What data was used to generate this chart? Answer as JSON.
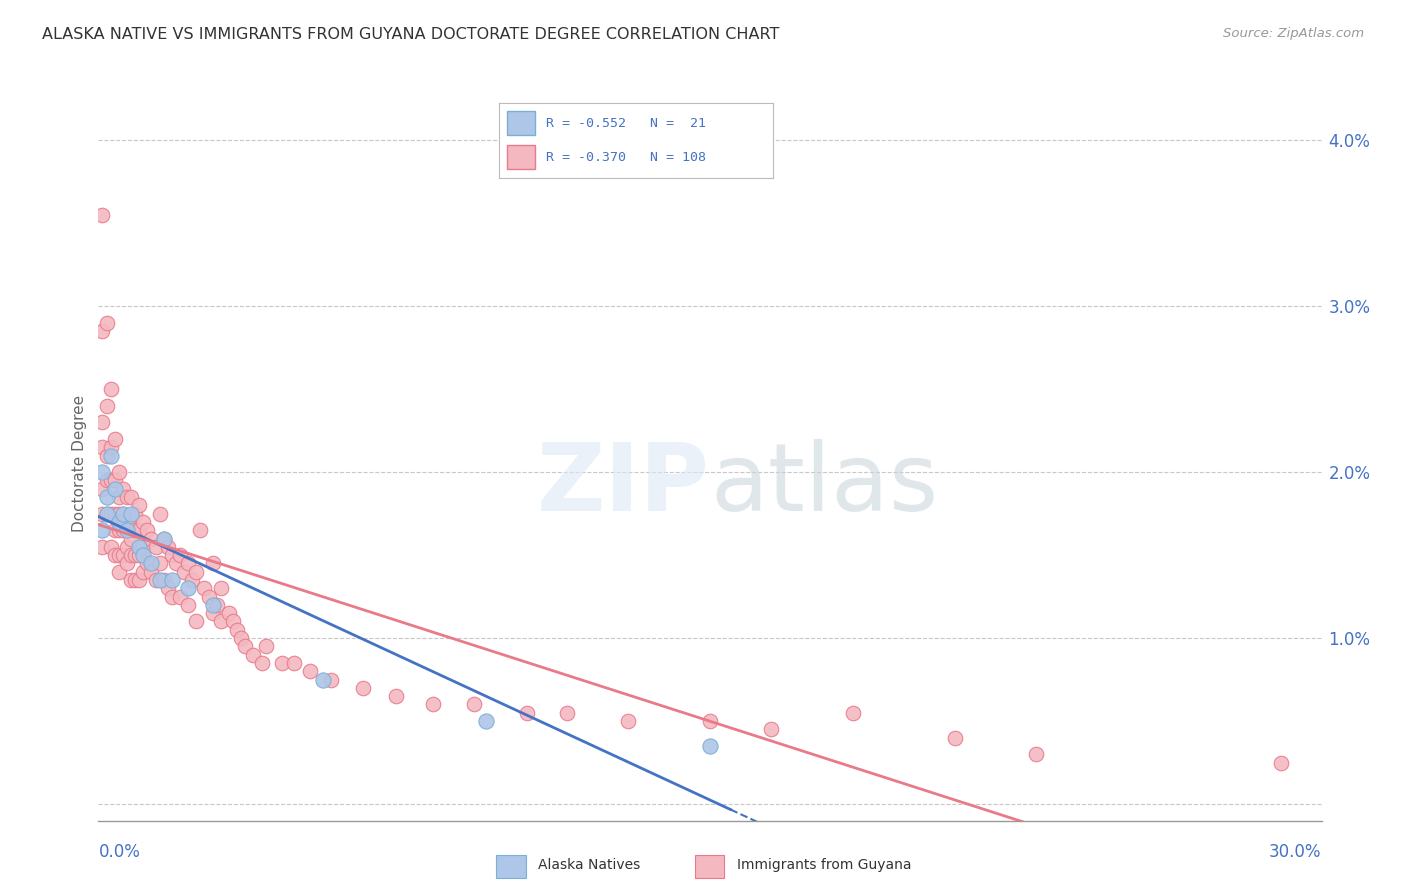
{
  "title": "ALASKA NATIVE VS IMMIGRANTS FROM GUYANA DOCTORATE DEGREE CORRELATION CHART",
  "source": "Source: ZipAtlas.com",
  "ylabel": "Doctorate Degree",
  "xlim": [
    0.0,
    0.3
  ],
  "ylim": [
    -0.001,
    0.042
  ],
  "background_color": "#ffffff",
  "grid_color": "#c8c8c8",
  "title_color": "#333333",
  "source_color": "#999999",
  "alaska_color": "#aec6e8",
  "alaska_edge_color": "#7bafd4",
  "guyana_color": "#f4b8c1",
  "guyana_edge_color": "#e87a8a",
  "alaska_line_color": "#4472c4",
  "guyana_line_color": "#e87a8a",
  "legend_text_color": "#4472c4",
  "r_alaska": "-0.552",
  "n_alaska": "21",
  "r_guyana": "-0.370",
  "n_guyana": "108",
  "alaska_x": [
    0.001,
    0.001,
    0.002,
    0.002,
    0.003,
    0.004,
    0.005,
    0.006,
    0.007,
    0.008,
    0.01,
    0.011,
    0.013,
    0.015,
    0.016,
    0.018,
    0.022,
    0.028,
    0.055,
    0.095,
    0.15
  ],
  "alaska_y": [
    0.02,
    0.0165,
    0.0185,
    0.0175,
    0.021,
    0.019,
    0.017,
    0.0175,
    0.0165,
    0.0175,
    0.0155,
    0.015,
    0.0145,
    0.0135,
    0.016,
    0.0135,
    0.013,
    0.012,
    0.0075,
    0.005,
    0.0035
  ],
  "guyana_x": [
    0.001,
    0.001,
    0.001,
    0.001,
    0.001,
    0.001,
    0.001,
    0.002,
    0.002,
    0.002,
    0.002,
    0.002,
    0.003,
    0.003,
    0.003,
    0.003,
    0.003,
    0.004,
    0.004,
    0.004,
    0.004,
    0.004,
    0.005,
    0.005,
    0.005,
    0.005,
    0.005,
    0.005,
    0.006,
    0.006,
    0.006,
    0.006,
    0.007,
    0.007,
    0.007,
    0.007,
    0.008,
    0.008,
    0.008,
    0.008,
    0.008,
    0.009,
    0.009,
    0.009,
    0.009,
    0.01,
    0.01,
    0.01,
    0.01,
    0.011,
    0.011,
    0.011,
    0.012,
    0.012,
    0.013,
    0.013,
    0.014,
    0.014,
    0.015,
    0.015,
    0.016,
    0.016,
    0.017,
    0.017,
    0.018,
    0.018,
    0.019,
    0.02,
    0.02,
    0.021,
    0.022,
    0.022,
    0.023,
    0.024,
    0.024,
    0.025,
    0.026,
    0.027,
    0.028,
    0.028,
    0.029,
    0.03,
    0.03,
    0.032,
    0.033,
    0.034,
    0.035,
    0.036,
    0.038,
    0.04,
    0.041,
    0.045,
    0.048,
    0.052,
    0.057,
    0.065,
    0.073,
    0.082,
    0.092,
    0.105,
    0.115,
    0.13,
    0.15,
    0.165,
    0.185,
    0.21,
    0.23,
    0.29
  ],
  "guyana_y": [
    0.0355,
    0.0285,
    0.023,
    0.0215,
    0.019,
    0.0175,
    0.0155,
    0.029,
    0.024,
    0.021,
    0.0195,
    0.0175,
    0.025,
    0.0215,
    0.0195,
    0.0175,
    0.0155,
    0.022,
    0.0195,
    0.0175,
    0.0165,
    0.015,
    0.02,
    0.0185,
    0.0175,
    0.0165,
    0.015,
    0.014,
    0.019,
    0.0175,
    0.0165,
    0.015,
    0.0185,
    0.017,
    0.0155,
    0.0145,
    0.0185,
    0.017,
    0.016,
    0.015,
    0.0135,
    0.0175,
    0.0165,
    0.015,
    0.0135,
    0.018,
    0.0165,
    0.015,
    0.0135,
    0.017,
    0.0155,
    0.014,
    0.0165,
    0.0145,
    0.016,
    0.014,
    0.0155,
    0.0135,
    0.0175,
    0.0145,
    0.016,
    0.0135,
    0.0155,
    0.013,
    0.015,
    0.0125,
    0.0145,
    0.015,
    0.0125,
    0.014,
    0.0145,
    0.012,
    0.0135,
    0.014,
    0.011,
    0.0165,
    0.013,
    0.0125,
    0.0145,
    0.0115,
    0.012,
    0.013,
    0.011,
    0.0115,
    0.011,
    0.0105,
    0.01,
    0.0095,
    0.009,
    0.0085,
    0.0095,
    0.0085,
    0.0085,
    0.008,
    0.0075,
    0.007,
    0.0065,
    0.006,
    0.006,
    0.0055,
    0.0055,
    0.005,
    0.005,
    0.0045,
    0.0055,
    0.004,
    0.003,
    0.0025
  ]
}
